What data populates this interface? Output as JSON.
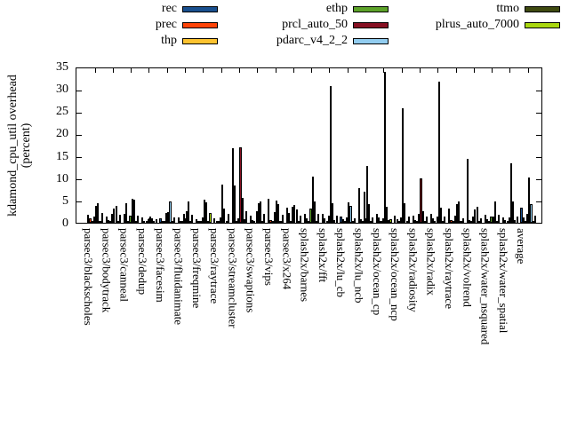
{
  "y_axis": {
    "title_line1": "kdamond_cpu_util overhead",
    "title_line2": "(percent)",
    "ticks": [
      0,
      5,
      10,
      15,
      20,
      25,
      30,
      35
    ]
  },
  "legend": {
    "position": "top",
    "columns": [
      [
        {
          "label": "rec",
          "color": "#19508f"
        },
        {
          "label": "prec",
          "color": "#ff4408"
        },
        {
          "label": "thp",
          "color": "#fdc330"
        }
      ],
      [
        {
          "label": "ethp",
          "color": "#5da329"
        },
        {
          "label": "prcl_auto_50",
          "color": "#871022"
        },
        {
          "label": "pdarc_v4_2_2",
          "color": "#92cdf0"
        }
      ],
      [
        {
          "label": "ttmo",
          "color": "#3f4a10"
        },
        {
          "label": "plrus_auto_7000",
          "color": "#a9d70f"
        }
      ]
    ]
  },
  "chart_data": {
    "type": "bar",
    "title": "",
    "xlabel": "",
    "ylabel": "kdamond_cpu_util overhead (percent)",
    "ylim": [
      0,
      35
    ],
    "grid": false,
    "legend_position": "top",
    "categories": [
      "parsec3/blackscholes",
      "parsec3/bodytrack",
      "parsec3/canneal",
      "parsec3/dedup",
      "parsec3/facesim",
      "parsec3/fluidanimate",
      "parsec3/freqmine",
      "parsec3/raytrace",
      "parsec3/streamcluster",
      "parsec3/swaptions",
      "parsec3/vips",
      "parsec3/x264",
      "splash2x/barnes",
      "splash2x/fft",
      "splash2x/lu_cb",
      "splash2x/lu_ncb",
      "splash2x/ocean_cp",
      "splash2x/ocean_ncp",
      "splash2x/radiosity",
      "splash2x/radix",
      "splash2x/raytrace",
      "splash2x/volrend",
      "splash2x/water_nsquared",
      "splash2x/water_spatial",
      "average"
    ],
    "series": [
      {
        "name": "rec",
        "color": "#19508f",
        "values": [
          1.8,
          1.45,
          2.0,
          1.2,
          1.1,
          1.2,
          0.85,
          1.1,
          16.8,
          1.7,
          5.3,
          3.4,
          1.9,
          2.0,
          1.5,
          7.7,
          2.0,
          1.7,
          1.7,
          1.9,
          3.2,
          14.4,
          1.8,
          1.25,
          3.3
        ]
      },
      {
        "name": "prec",
        "color": "#ff4408",
        "values": [
          1.0,
          0.65,
          4.3,
          0.5,
          0.5,
          0.5,
          0.4,
          0.5,
          8.3,
          0.7,
          0.65,
          2.2,
          1.05,
          1.05,
          0.9,
          0.9,
          1.2,
          0.9,
          0.6,
          1.05,
          0.6,
          0.7,
          0.85,
          0.7,
          1.3
        ]
      },
      {
        "name": "thp",
        "color": "#fdc330",
        "values": [
          0.3,
          0.25,
          0.3,
          0.2,
          0.2,
          0.2,
          0.2,
          0.2,
          0.5,
          0.3,
          0.3,
          0.3,
          0.4,
          0.3,
          0.25,
          0.3,
          0.3,
          0.3,
          0.25,
          0.3,
          0.25,
          0.3,
          0.3,
          0.25,
          0.3
        ]
      },
      {
        "name": "ethp",
        "color": "#5da329",
        "values": [
          1.5,
          2.0,
          1.7,
          0.9,
          2.2,
          2.0,
          1.2,
          1.3,
          1.0,
          2.5,
          2.4,
          3.6,
          3.2,
          1.7,
          1.3,
          6.9,
          1.05,
          1.2,
          2.0,
          1.4,
          1.7,
          1.5,
          1.4,
          1.2,
          1.9
        ]
      },
      {
        "name": "prcl_auto_50",
        "color": "#871022",
        "values": [
          3.7,
          3.2,
          5.3,
          1.45,
          2.4,
          2.5,
          5.1,
          8.5,
          16.9,
          4.35,
          5.0,
          3.9,
          10.4,
          30.7,
          4.5,
          12.8,
          33.8,
          25.6,
          10.0,
          31.7,
          4.1,
          3.0,
          1.5,
          13.4,
          10.2
        ]
      },
      {
        "name": "pdarc_v4_2_2",
        "color": "#92cdf0",
        "values": [
          4.3,
          3.75,
          5.1,
          1.05,
          4.7,
          4.7,
          4.5,
          3.2,
          5.6,
          4.8,
          4.2,
          2.9,
          4.7,
          4.35,
          3.8,
          4.2,
          3.6,
          4.4,
          2.5,
          3.3,
          4.7,
          3.5,
          4.7,
          4.8,
          4.1
        ]
      },
      {
        "name": "ttmo",
        "color": "#3f4a10",
        "values": [
          0.4,
          0.4,
          0.4,
          0.3,
          0.3,
          0.3,
          0.3,
          0.3,
          0.8,
          0.4,
          0.4,
          0.5,
          0.5,
          0.6,
          0.4,
          0.5,
          0.65,
          0.5,
          0.4,
          0.5,
          0.4,
          0.4,
          0.4,
          0.7,
          0.5
        ]
      },
      {
        "name": "plrus_auto_7000",
        "color": "#a9d70f",
        "values": [
          2.1,
          1.85,
          1.6,
          0.8,
          1.3,
          1.85,
          2.2,
          2.0,
          2.5,
          2.0,
          1.85,
          1.6,
          2.0,
          1.7,
          1.05,
          1.2,
          0.9,
          1.4,
          1.4,
          1.4,
          1.0,
          1.05,
          1.8,
          1.4,
          1.6
        ]
      }
    ]
  }
}
